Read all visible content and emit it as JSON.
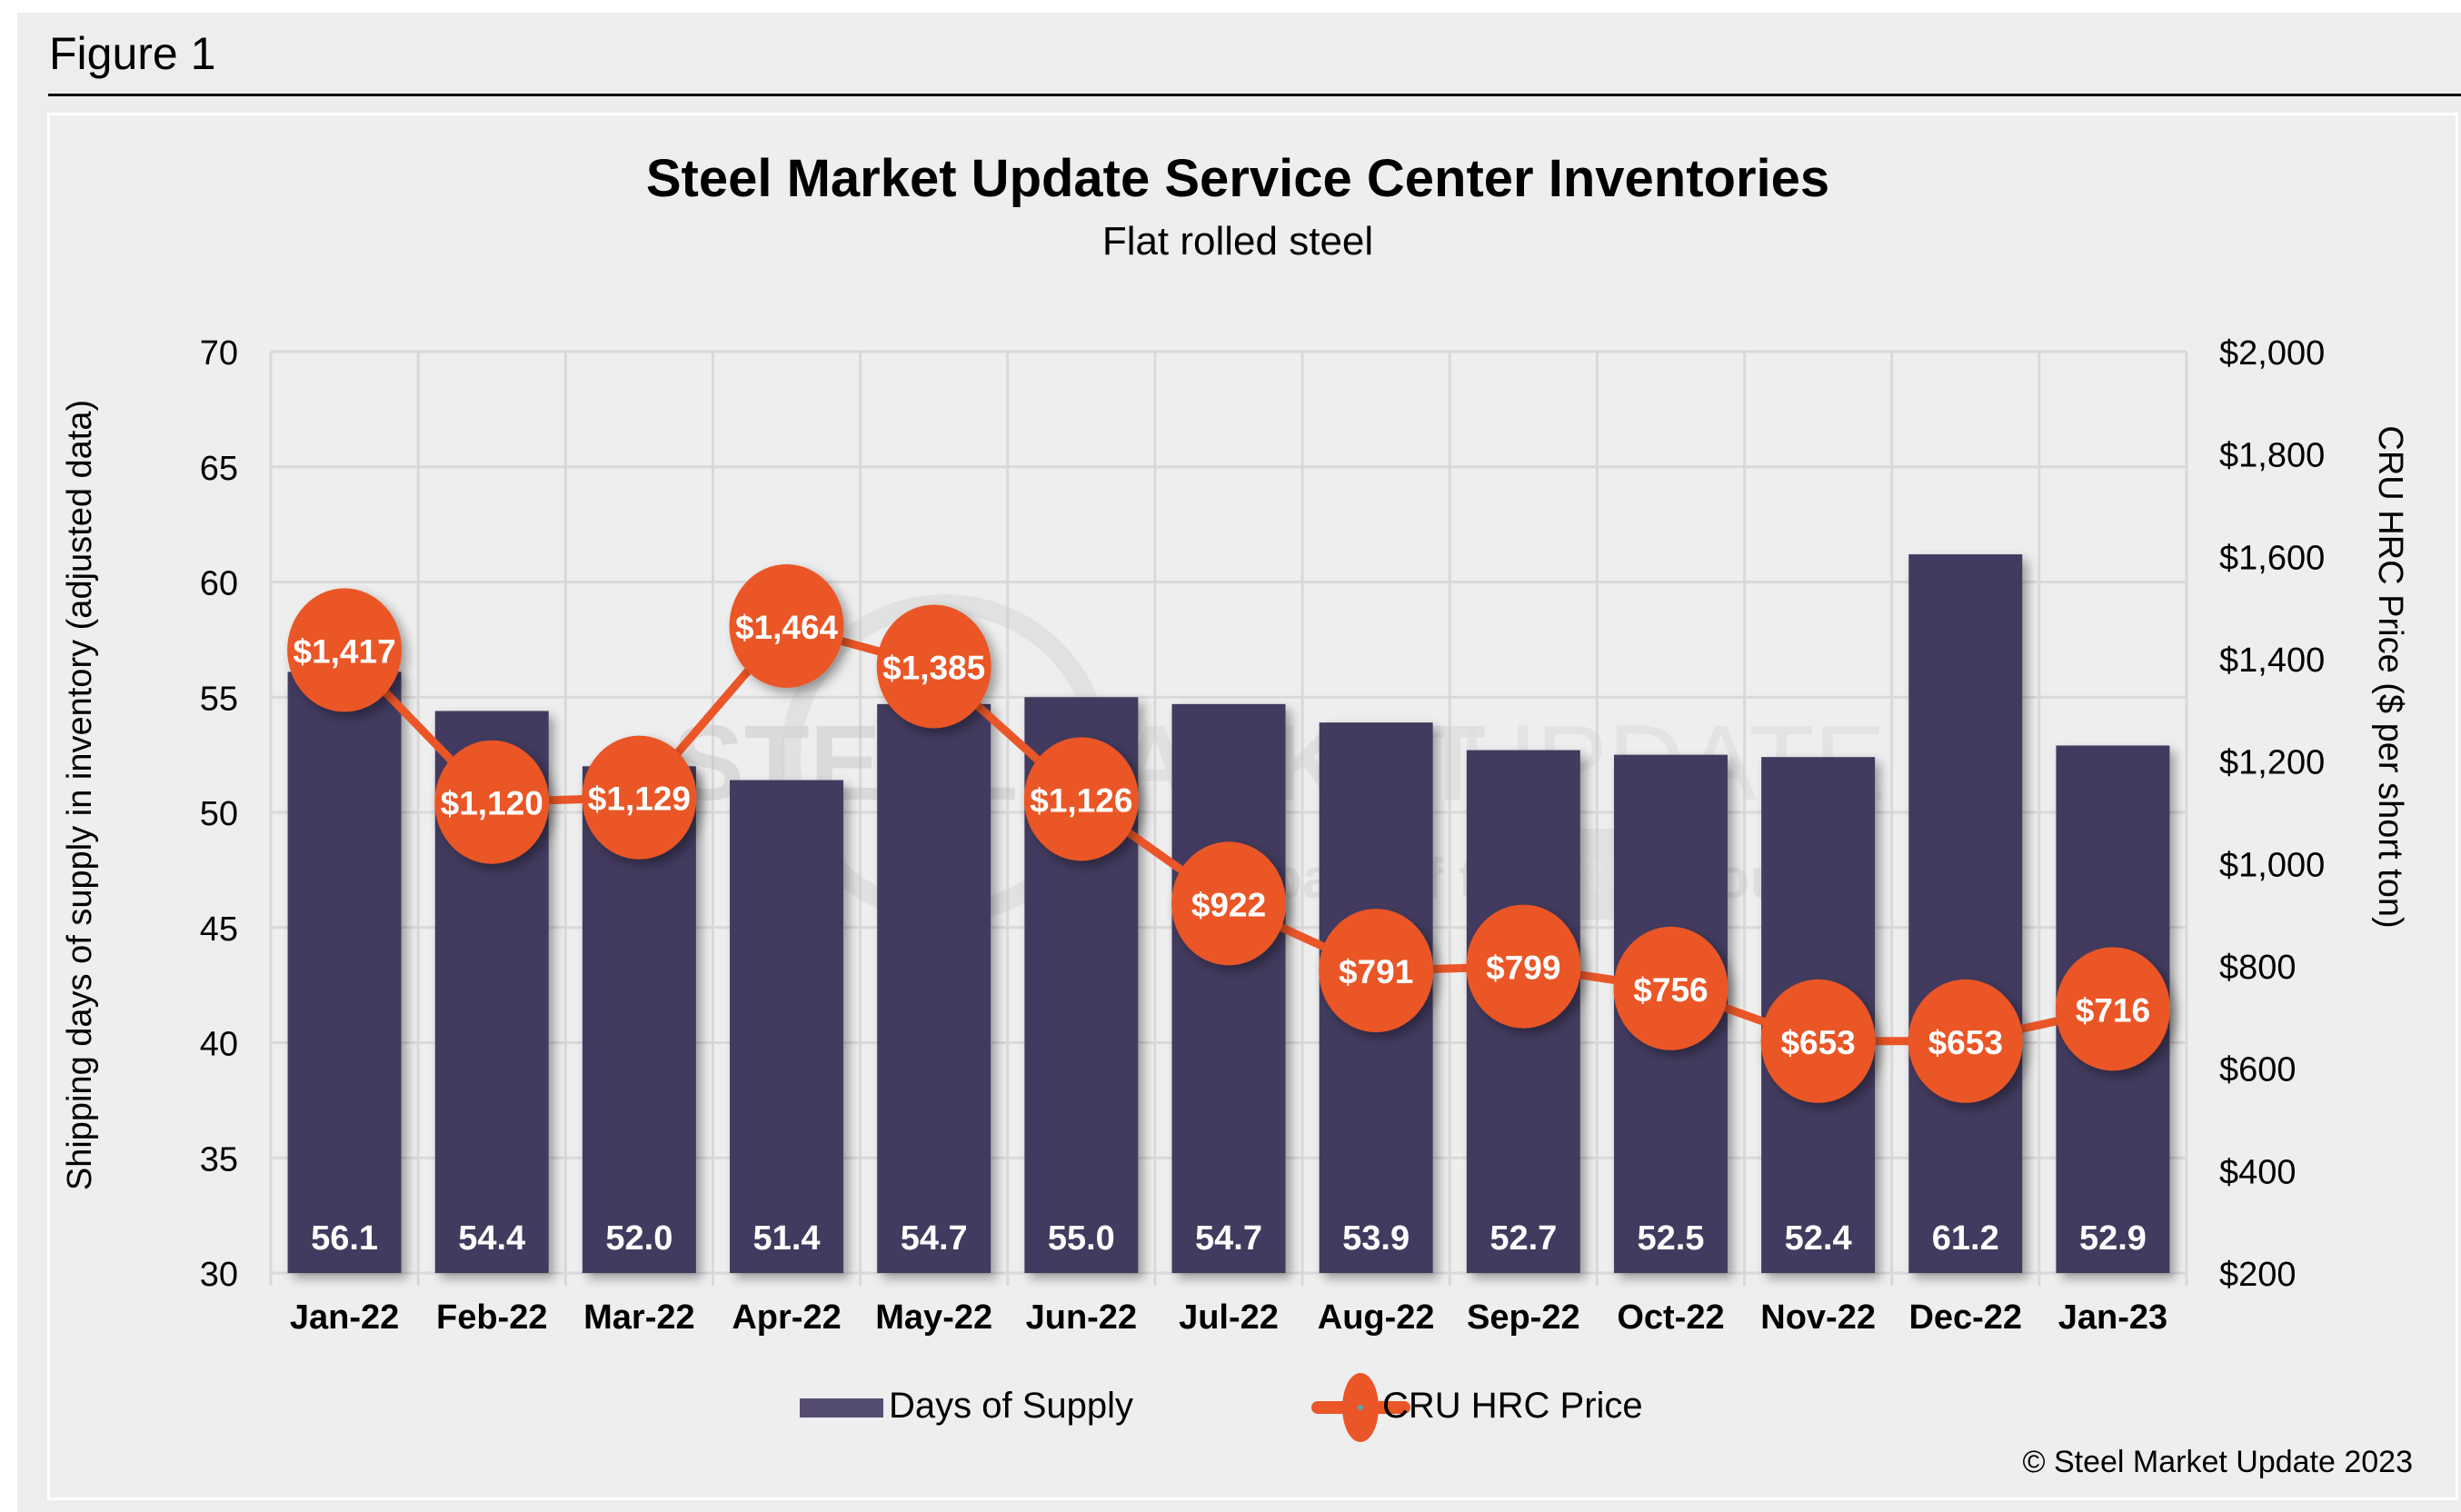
{
  "figure_label": "Figure 1",
  "copyright": "© Steel Market Update 2023",
  "watermark": {
    "line1_bold": "STEEL",
    "line1_mid": "MARKET",
    "line1_light": "UPDATE",
    "line2_pre": "part of the",
    "line2_logo": "CRU",
    "line2_post": "Group"
  },
  "colors": {
    "bar": "#433a5f",
    "line": "#ea5628",
    "marker_text": "#ffffff",
    "grid": "#d9d9d9",
    "background": "#eeeeee"
  },
  "chart_data": {
    "type": "bar+line",
    "title": "Steel Market Update Service Center Inventories",
    "subtitle": "Flat rolled steel",
    "xlabel": "",
    "ylabel": "Shipping days of supply in inventory (adjusted data)",
    "y2label": "CRU HRC Price ($ per short ton)",
    "categories": [
      "Jan-22",
      "Feb-22",
      "Mar-22",
      "Apr-22",
      "May-22",
      "Jun-22",
      "Jul-22",
      "Aug-22",
      "Sep-22",
      "Oct-22",
      "Nov-22",
      "Dec-22",
      "Jan-23"
    ],
    "ylim": [
      30,
      70
    ],
    "yticks": [
      30,
      35,
      40,
      45,
      50,
      55,
      60,
      65,
      70
    ],
    "ytick_labels": [
      "30",
      "35",
      "40",
      "45",
      "50",
      "55",
      "60",
      "65",
      "70"
    ],
    "y2lim": [
      200,
      2000
    ],
    "y2ticks": [
      200,
      400,
      600,
      800,
      1000,
      1200,
      1400,
      1600,
      1800,
      2000
    ],
    "y2tick_labels": [
      "$200",
      "$400",
      "$600",
      "$800",
      "$1,000",
      "$1,200",
      "$1,400",
      "$1,600",
      "$1,800",
      "$2,000"
    ],
    "grid": true,
    "legend_position": "bottom",
    "series": [
      {
        "name": "Days of Supply",
        "type": "bar",
        "axis": "left",
        "values": [
          56.1,
          54.4,
          52.0,
          51.4,
          54.7,
          55.0,
          54.7,
          53.9,
          52.7,
          52.5,
          52.4,
          61.2,
          52.9
        ],
        "labels": [
          "56.1",
          "54.4",
          "52.0",
          "51.4",
          "54.7",
          "55.0",
          "54.7",
          "53.9",
          "52.7",
          "52.5",
          "52.4",
          "61.2",
          "52.9"
        ]
      },
      {
        "name": "CRU HRC Price",
        "type": "line",
        "axis": "right",
        "values": [
          1417,
          1120,
          1129,
          1464,
          1385,
          1126,
          922,
          791,
          799,
          756,
          653,
          653,
          716
        ],
        "labels": [
          "$1,417",
          "$1,120",
          "$1,129",
          "$1,464",
          "$1,385",
          "$1,126",
          "$922",
          "$791",
          "$799",
          "$756",
          "$653",
          "$653",
          "$716"
        ]
      }
    ]
  }
}
